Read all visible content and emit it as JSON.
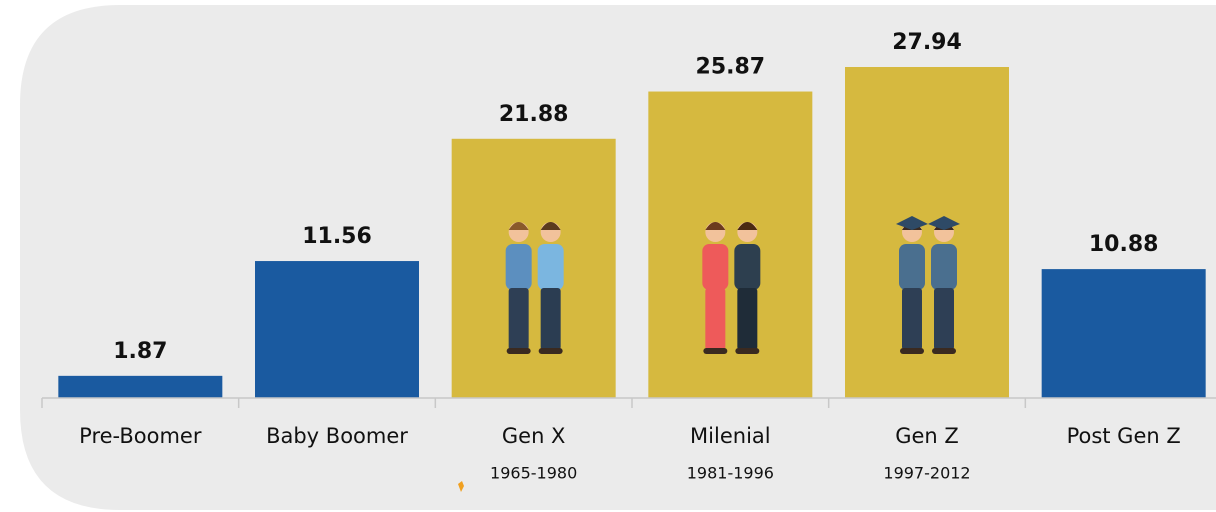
{
  "chart_data": {
    "type": "bar",
    "categories": [
      "Pre-Boomer",
      "Baby Boomer",
      "Gen X",
      "Milenial",
      "Gen Z",
      "Post Gen Z"
    ],
    "sublabels": [
      null,
      null,
      "1965-1980",
      "1981-1996",
      "1997-2012",
      null
    ],
    "values": [
      1.87,
      11.56,
      21.88,
      25.87,
      27.94,
      10.88
    ],
    "colors": [
      "#1a5aa0",
      "#1a5aa0",
      "#d6b93f",
      "#d6b93f",
      "#d6b93f",
      "#1a5aa0"
    ]
  }
}
